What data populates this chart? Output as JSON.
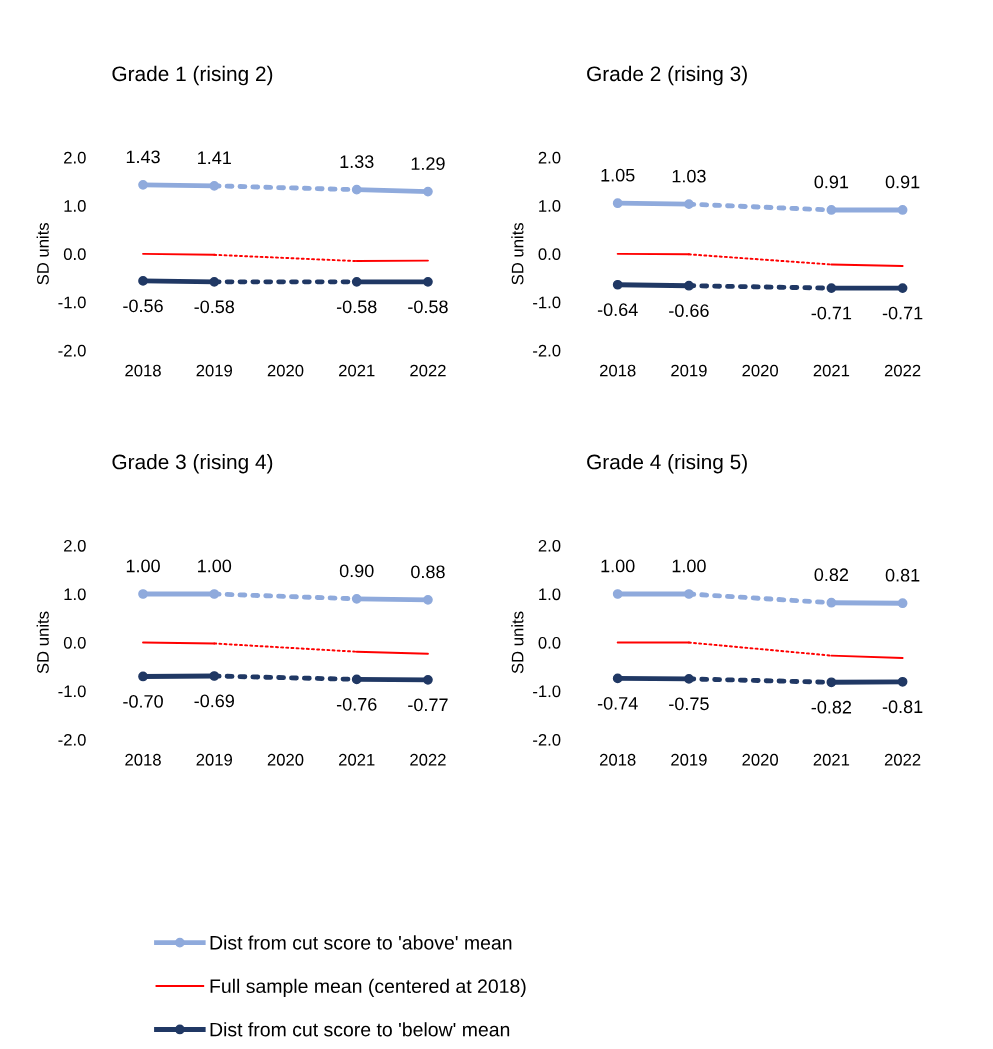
{
  "chart_data": [
    {
      "type": "line",
      "title": "Grade 1 (rising 2)",
      "ylabel": "SD units",
      "categories": [
        "2018",
        "2019",
        "2020",
        "2021",
        "2022"
      ],
      "ylim": [
        -2,
        2
      ],
      "yticks": [
        {
          "value": 2,
          "label": "2.0"
        },
        {
          "value": 1,
          "label": "1.0"
        },
        {
          "value": 0,
          "label": "0.0"
        },
        {
          "value": -1,
          "label": "-1.0"
        },
        {
          "value": -2,
          "label": "-2.0"
        }
      ],
      "grid": false,
      "series": [
        {
          "color": "#8faadc",
          "values": [
            1.43,
            1.41,
            null,
            1.33,
            1.29
          ],
          "value_labels": [
            "1.43",
            "1.41",
            null,
            "1.33",
            "1.29"
          ],
          "marker": "circle",
          "line_style": [
            "solid",
            "dotted",
            "dotted",
            "solid"
          ]
        },
        {
          "color": "#ff0000",
          "values": [
            0,
            -0.02,
            null,
            -0.15,
            -0.14
          ],
          "marker": "none",
          "line_style": [
            "solid",
            "dotted",
            "dotted",
            "solid"
          ]
        },
        {
          "color": "#203864",
          "values": [
            -0.56,
            -0.58,
            null,
            -0.58,
            -0.58
          ],
          "value_labels": [
            "-0.56",
            "-0.58",
            null,
            "-0.58",
            "-0.58"
          ],
          "marker": "circle",
          "line_style": [
            "solid",
            "dotted",
            "dotted",
            "solid"
          ]
        }
      ]
    },
    {
      "type": "line",
      "title": "Grade 2 (rising 3)",
      "ylabel": "SD units",
      "categories": [
        "2018",
        "2019",
        "2020",
        "2021",
        "2022"
      ],
      "ylim": [
        -2,
        2
      ],
      "yticks": [
        {
          "value": 2,
          "label": "2.0"
        },
        {
          "value": 1,
          "label": "1.0"
        },
        {
          "value": 0,
          "label": "0.0"
        },
        {
          "value": -1,
          "label": "-1.0"
        },
        {
          "value": -2,
          "label": "-2.0"
        }
      ],
      "grid": false,
      "series": [
        {
          "color": "#8faadc",
          "values": [
            1.05,
            1.03,
            null,
            0.91,
            0.91
          ],
          "value_labels": [
            "1.05",
            "1.03",
            null,
            "0.91",
            "0.91"
          ],
          "marker": "circle",
          "line_style": [
            "solid",
            "dotted",
            "dotted",
            "solid"
          ]
        },
        {
          "color": "#ff0000",
          "values": [
            0,
            -0.01,
            null,
            -0.22,
            -0.25
          ],
          "marker": "none",
          "line_style": [
            "solid",
            "dotted",
            "dotted",
            "solid"
          ]
        },
        {
          "color": "#203864",
          "values": [
            -0.64,
            -0.66,
            null,
            -0.71,
            -0.71
          ],
          "value_labels": [
            "-0.64",
            "-0.66",
            null,
            "-0.71",
            "-0.71"
          ],
          "marker": "circle",
          "line_style": [
            "solid",
            "dotted",
            "dotted",
            "solid"
          ]
        }
      ]
    },
    {
      "type": "line",
      "title": "Grade 3 (rising 4)",
      "ylabel": "SD units",
      "categories": [
        "2018",
        "2019",
        "2020",
        "2021",
        "2022"
      ],
      "ylim": [
        -2,
        2
      ],
      "yticks": [
        {
          "value": 2,
          "label": "2.0"
        },
        {
          "value": 1,
          "label": "1.0"
        },
        {
          "value": 0,
          "label": "0.0"
        },
        {
          "value": -1,
          "label": "-1.0"
        },
        {
          "value": -2,
          "label": "-2.0"
        }
      ],
      "grid": false,
      "legend": "bottom",
      "series": [
        {
          "name": "Dist from cut score to 'above' mean",
          "color": "#8faadc",
          "values": [
            1.0,
            1.0,
            null,
            0.9,
            0.88
          ],
          "value_labels": [
            "1.00",
            "1.00",
            null,
            "0.90",
            "0.88"
          ],
          "marker": "circle",
          "line_style": [
            "solid",
            "dotted",
            "dotted",
            "solid"
          ]
        },
        {
          "name": "Full sample mean (centered at 2018)",
          "color": "#ff0000",
          "values": [
            0,
            -0.02,
            null,
            -0.19,
            -0.23
          ],
          "marker": "none",
          "line_style": [
            "solid",
            "dotted",
            "dotted",
            "solid"
          ]
        },
        {
          "name": "Dist from cut score to 'below' mean",
          "color": "#203864",
          "values": [
            -0.7,
            -0.69,
            null,
            -0.76,
            -0.77
          ],
          "value_labels": [
            "-0.70",
            "-0.69",
            null,
            "-0.76",
            "-0.77"
          ],
          "marker": "circle",
          "line_style": [
            "solid",
            "dotted",
            "dotted",
            "solid"
          ]
        }
      ]
    },
    {
      "type": "line",
      "title": "Grade 4 (rising 5)",
      "ylabel": "SD units",
      "categories": [
        "2018",
        "2019",
        "2020",
        "2021",
        "2022"
      ],
      "ylim": [
        -2,
        2
      ],
      "yticks": [
        {
          "value": 2,
          "label": "2.0"
        },
        {
          "value": 1,
          "label": "1.0"
        },
        {
          "value": 0,
          "label": "0.0"
        },
        {
          "value": -1,
          "label": "-1.0"
        },
        {
          "value": -2,
          "label": "-2.0"
        }
      ],
      "grid": false,
      "series": [
        {
          "color": "#8faadc",
          "values": [
            1.0,
            1.0,
            null,
            0.82,
            0.81
          ],
          "value_labels": [
            "1.00",
            "1.00",
            null,
            "0.82",
            "0.81"
          ],
          "marker": "circle",
          "line_style": [
            "solid",
            "dotted",
            "dotted",
            "solid"
          ]
        },
        {
          "color": "#ff0000",
          "values": [
            0,
            0,
            null,
            -0.27,
            -0.32
          ],
          "marker": "none",
          "line_style": [
            "solid",
            "dotted",
            "dotted",
            "solid"
          ]
        },
        {
          "color": "#203864",
          "values": [
            -0.74,
            -0.75,
            null,
            -0.82,
            -0.81
          ],
          "value_labels": [
            "-0.74",
            "-0.75",
            null,
            "-0.82",
            "-0.81"
          ],
          "marker": "circle",
          "line_style": [
            "solid",
            "dotted",
            "dotted",
            "solid"
          ]
        }
      ]
    }
  ]
}
